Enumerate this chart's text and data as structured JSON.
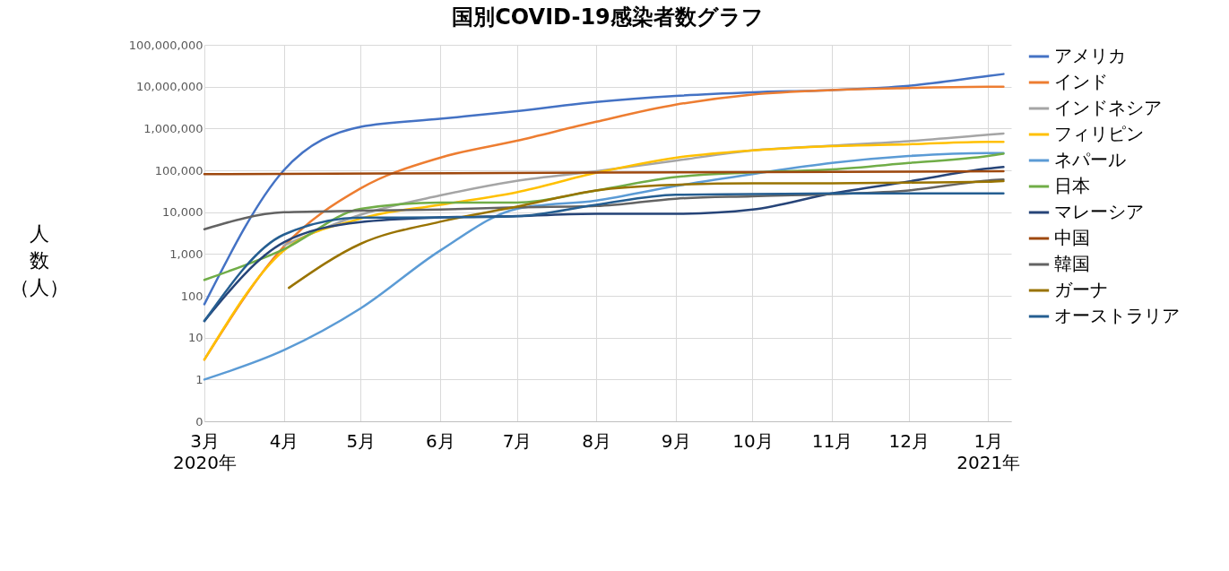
{
  "chart_data": {
    "type": "line",
    "title": "国別COVID-19感染者数グラフ",
    "ylabel": "人数（人）",
    "log": "y",
    "grid": true,
    "legend": "right",
    "line_style": "solid",
    "marker": "none",
    "xlim": [
      "2020-03-01",
      "2021-01-10"
    ],
    "xticks": [
      {
        "value": "2020-03-01",
        "label": "3月\n2020年"
      },
      {
        "value": "2020-04-01",
        "label": "4月"
      },
      {
        "value": "2020-05-01",
        "label": "5月"
      },
      {
        "value": "2020-06-01",
        "label": "6月"
      },
      {
        "value": "2020-07-01",
        "label": "7月"
      },
      {
        "value": "2020-08-01",
        "label": "8月"
      },
      {
        "value": "2020-09-01",
        "label": "9月"
      },
      {
        "value": "2020-10-01",
        "label": "10月"
      },
      {
        "value": "2020-11-01",
        "label": "11月"
      },
      {
        "value": "2020-12-01",
        "label": "12月"
      },
      {
        "value": "2021-01-01",
        "label": "1月\n2021年"
      }
    ],
    "ylim": [
      0.1,
      100000000
    ],
    "yticks": [
      {
        "value": 0.1,
        "label": "0"
      },
      {
        "value": 1,
        "label": "1"
      },
      {
        "value": 10,
        "label": "10"
      },
      {
        "value": 100,
        "label": "100"
      },
      {
        "value": 1000,
        "label": "1,000"
      },
      {
        "value": 10000,
        "label": "10,000"
      },
      {
        "value": 100000,
        "label": "100,000"
      },
      {
        "value": 1000000,
        "label": "1,000,000"
      },
      {
        "value": 10000000,
        "label": "10,000,000"
      },
      {
        "value": 100000000,
        "label": "100,000,000"
      }
    ],
    "x": [
      "2020-03-01",
      "2020-04-01",
      "2020-05-01",
      "2020-06-01",
      "2020-07-01",
      "2020-08-01",
      "2020-09-01",
      "2020-10-01",
      "2020-11-01",
      "2020-12-01",
      "2021-01-01",
      "2021-01-07"
    ],
    "series": [
      {
        "name": "アメリカ",
        "color": "#4472c4",
        "values": [
          63,
          100000,
          1100000,
          1700000,
          2600000,
          4300000,
          6000000,
          7300000,
          8300000,
          10500000,
          18000000,
          20000000
        ]
      },
      {
        "name": "インド",
        "color": "#ed7d31",
        "values": [
          3,
          1500,
          37000,
          200000,
          510000,
          1450000,
          3700000,
          6500000,
          8300000,
          9300000,
          10000000,
          10000000
        ]
      },
      {
        "name": "インドネシア",
        "color": "#a5a5a5",
        "values": [
          null,
          1600,
          8700,
          25000,
          56000,
          95000,
          170000,
          300000,
          390000,
          500000,
          710000,
          760000
        ]
      },
      {
        "name": "フィリピン",
        "color": "#ffc000",
        "values": [
          3,
          1200,
          7000,
          15000,
          30000,
          87000,
          200000,
          300000,
          380000,
          420000,
          480000,
          480000
        ]
      },
      {
        "name": "ネパール",
        "color": "#5b9bd5",
        "values": [
          1,
          5,
          50,
          1200,
          12000,
          19000,
          42000,
          81000,
          150000,
          220000,
          260000,
          260000
        ]
      },
      {
        "name": "日本",
        "color": "#70ad47",
        "values": [
          240,
          1300,
          12000,
          17000,
          17000,
          33000,
          69000,
          89000,
          105000,
          150000,
          220000,
          250000
        ]
      },
      {
        "name": "マレーシア",
        "color": "#264478",
        "values": [
          25,
          1900,
          5800,
          7500,
          8100,
          9100,
          9100,
          11500,
          28000,
          54000,
          110000,
          120000
        ]
      },
      {
        "name": "中国",
        "color": "#9e480e",
        "x": [
          "2020-03-01",
          "2020-08-01",
          "2021-01-07"
        ],
        "values": [
          81000,
          88000,
          95000
        ]
      },
      {
        "name": "韓国",
        "color": "#636363",
        "values": [
          3900,
          9900,
          10800,
          11500,
          13000,
          14000,
          21000,
          24000,
          27000,
          33000,
          57000,
          60000
        ]
      },
      {
        "name": "ガーナ",
        "color": "#997300",
        "x": [
          "2020-04-03",
          "2020-05-01",
          "2020-06-01",
          "2020-07-01",
          "2020-08-01",
          "2020-09-01",
          "2020-10-01",
          "2020-11-01",
          "2020-12-01",
          "2021-01-01",
          "2021-01-07"
        ],
        "values": [
          155,
          1750,
          5900,
          13500,
          33000,
          45000,
          49000,
          49000,
          51000,
          53000,
          55000
        ]
      },
      {
        "name": "オーストラリア",
        "color": "#255e91",
        "values": [
          25,
          2900,
          7400,
          7500,
          8000,
          15000,
          26000,
          27000,
          28000,
          28000,
          28000,
          28000
        ]
      }
    ]
  }
}
